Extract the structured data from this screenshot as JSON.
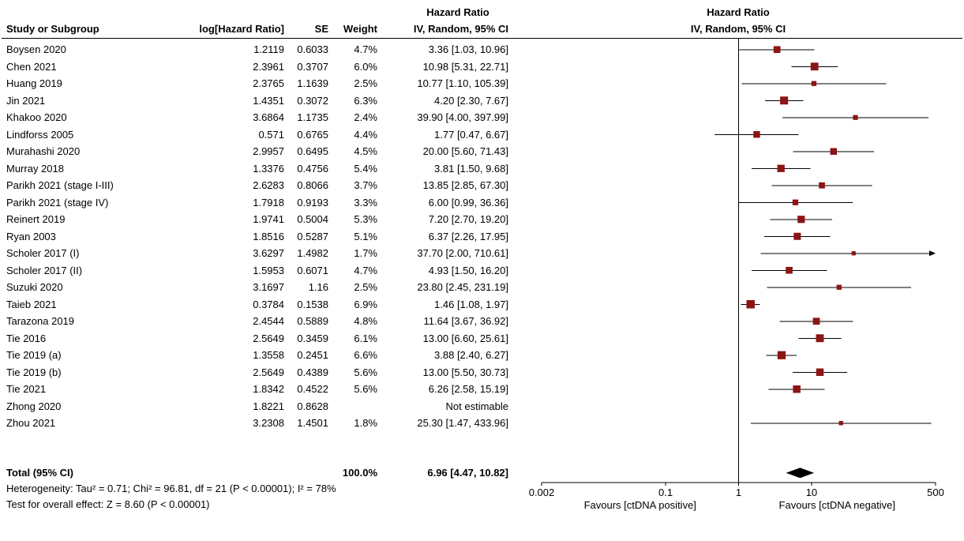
{
  "chart_data": {
    "type": "forest",
    "scale": "log",
    "header": {
      "study": "Study or Subgroup",
      "log_hr": "log[Hazard Ratio]",
      "se": "SE",
      "weight": "Weight",
      "effect": "Hazard Ratio",
      "method": "IV, Random, 95% CI"
    },
    "studies": [
      {
        "name": "Boysen 2020",
        "log_hr": "1.2119",
        "se": "0.6033",
        "weight": "4.7%",
        "weight_pct": 4.7,
        "ci_text": "3.36 [1.03, 10.96]",
        "hr": 3.36,
        "low": 1.03,
        "high": 10.96
      },
      {
        "name": "Chen 2021",
        "log_hr": "2.3961",
        "se": "0.3707",
        "weight": "6.0%",
        "weight_pct": 6.0,
        "ci_text": "10.98 [5.31, 22.71]",
        "hr": 10.98,
        "low": 5.31,
        "high": 22.71
      },
      {
        "name": "Huang 2019",
        "log_hr": "2.3765",
        "se": "1.1639",
        "weight": "2.5%",
        "weight_pct": 2.5,
        "ci_text": "10.77 [1.10, 105.39]",
        "hr": 10.77,
        "low": 1.1,
        "high": 105.39
      },
      {
        "name": "Jin 2021",
        "log_hr": "1.4351",
        "se": "0.3072",
        "weight": "6.3%",
        "weight_pct": 6.3,
        "ci_text": "4.20 [2.30, 7.67]",
        "hr": 4.2,
        "low": 2.3,
        "high": 7.67
      },
      {
        "name": "Khakoo 2020",
        "log_hr": "3.6864",
        "se": "1.1735",
        "weight": "2.4%",
        "weight_pct": 2.4,
        "ci_text": "39.90 [4.00, 397.99]",
        "hr": 39.9,
        "low": 4.0,
        "high": 397.99
      },
      {
        "name": "Lindforss 2005",
        "log_hr": "0.571",
        "se": "0.6765",
        "weight": "4.4%",
        "weight_pct": 4.4,
        "ci_text": "1.77 [0.47, 6.67]",
        "hr": 1.77,
        "low": 0.47,
        "high": 6.67
      },
      {
        "name": "Murahashi 2020",
        "log_hr": "2.9957",
        "se": "0.6495",
        "weight": "4.5%",
        "weight_pct": 4.5,
        "ci_text": "20.00 [5.60, 71.43]",
        "hr": 20.0,
        "low": 5.6,
        "high": 71.43
      },
      {
        "name": "Murray 2018",
        "log_hr": "1.3376",
        "se": "0.4756",
        "weight": "5.4%",
        "weight_pct": 5.4,
        "ci_text": "3.81 [1.50, 9.68]",
        "hr": 3.81,
        "low": 1.5,
        "high": 9.68
      },
      {
        "name": "Parikh 2021 (stage I-III)",
        "log_hr": "2.6283",
        "se": "0.8066",
        "weight": "3.7%",
        "weight_pct": 3.7,
        "ci_text": "13.85 [2.85, 67.30]",
        "hr": 13.85,
        "low": 2.85,
        "high": 67.3
      },
      {
        "name": "Parikh 2021 (stage IV)",
        "log_hr": "1.7918",
        "se": "0.9193",
        "weight": "3.3%",
        "weight_pct": 3.3,
        "ci_text": "6.00 [0.99, 36.36]",
        "hr": 6.0,
        "low": 0.99,
        "high": 36.36
      },
      {
        "name": "Reinert 2019",
        "log_hr": "1.9741",
        "se": "0.5004",
        "weight": "5.3%",
        "weight_pct": 5.3,
        "ci_text": "7.20 [2.70, 19.20]",
        "hr": 7.2,
        "low": 2.7,
        "high": 19.2
      },
      {
        "name": "Ryan 2003",
        "log_hr": "1.8516",
        "se": "0.5287",
        "weight": "5.1%",
        "weight_pct": 5.1,
        "ci_text": "6.37 [2.26, 17.95]",
        "hr": 6.37,
        "low": 2.26,
        "high": 17.95
      },
      {
        "name": "Scholer 2017 (I)",
        "log_hr": "3.6297",
        "se": "1.4982",
        "weight": "1.7%",
        "weight_pct": 1.7,
        "ci_text": "37.70 [2.00, 710.61]",
        "hr": 37.7,
        "low": 2.0,
        "high": 710.61
      },
      {
        "name": "Scholer 2017 (II)",
        "log_hr": "1.5953",
        "se": "0.6071",
        "weight": "4.7%",
        "weight_pct": 4.7,
        "ci_text": "4.93 [1.50, 16.20]",
        "hr": 4.93,
        "low": 1.5,
        "high": 16.2
      },
      {
        "name": "Suzuki 2020",
        "log_hr": "3.1697",
        "se": "1.16",
        "weight": "2.5%",
        "weight_pct": 2.5,
        "ci_text": "23.80 [2.45, 231.19]",
        "hr": 23.8,
        "low": 2.45,
        "high": 231.19
      },
      {
        "name": "Taieb 2021",
        "log_hr": "0.3784",
        "se": "0.1538",
        "weight": "6.9%",
        "weight_pct": 6.9,
        "ci_text": "1.46 [1.08, 1.97]",
        "hr": 1.46,
        "low": 1.08,
        "high": 1.97
      },
      {
        "name": "Tarazona 2019",
        "log_hr": "2.4544",
        "se": "0.5889",
        "weight": "4.8%",
        "weight_pct": 4.8,
        "ci_text": "11.64 [3.67, 36.92]",
        "hr": 11.64,
        "low": 3.67,
        "high": 36.92
      },
      {
        "name": "Tie 2016",
        "log_hr": "2.5649",
        "se": "0.3459",
        "weight": "6.1%",
        "weight_pct": 6.1,
        "ci_text": "13.00 [6.60, 25.61]",
        "hr": 13.0,
        "low": 6.6,
        "high": 25.61
      },
      {
        "name": "Tie 2019 (a)",
        "log_hr": "1.3558",
        "se": "0.2451",
        "weight": "6.6%",
        "weight_pct": 6.6,
        "ci_text": "3.88 [2.40, 6.27]",
        "hr": 3.88,
        "low": 2.4,
        "high": 6.27
      },
      {
        "name": "Tie 2019 (b)",
        "log_hr": "2.5649",
        "se": "0.4389",
        "weight": "5.6%",
        "weight_pct": 5.6,
        "ci_text": "13.00 [5.50, 30.73]",
        "hr": 13.0,
        "low": 5.5,
        "high": 30.73
      },
      {
        "name": "Tie 2021",
        "log_hr": "1.8342",
        "se": "0.4522",
        "weight": "5.6%",
        "weight_pct": 5.6,
        "ci_text": "6.26 [2.58, 15.19]",
        "hr": 6.26,
        "low": 2.58,
        "high": 15.19
      },
      {
        "name": "Zhong 2020",
        "log_hr": "1.8221",
        "se": "0.8628",
        "weight": "",
        "weight_pct": null,
        "ci_text": "Not estimable",
        "hr": null,
        "low": null,
        "high": null
      },
      {
        "name": "Zhou 2021",
        "log_hr": "3.2308",
        "se": "1.4501",
        "weight": "1.8%",
        "weight_pct": 1.8,
        "ci_text": "25.30 [1.47, 433.96]",
        "hr": 25.3,
        "low": 1.47,
        "high": 433.96
      }
    ],
    "total": {
      "label": "Total (95% CI)",
      "weight": "100.0%",
      "ci_text": "6.96 [4.47, 10.82]",
      "hr": 6.96,
      "low": 4.47,
      "high": 10.82
    },
    "heterogeneity": "Heterogeneity: Tau² = 0.71; Chi² = 96.81, df = 21 (P < 0.00001); I² = 78%",
    "overall_effect": "Test for overall effect: Z = 8.60 (P < 0.00001)",
    "axis": {
      "min": 0.002,
      "max": 500,
      "tick_values": [
        0.002,
        0.1,
        1,
        10,
        500
      ],
      "tick_labels": [
        "0.002",
        "0.1",
        "1",
        "10",
        "500"
      ]
    },
    "favours_left": "Favours [ctDNA positive]",
    "favours_right": "Favours [ctDNA negative]",
    "colors": {
      "marker": "#8b1414",
      "diamond": "#000000",
      "line": "#000000"
    }
  }
}
